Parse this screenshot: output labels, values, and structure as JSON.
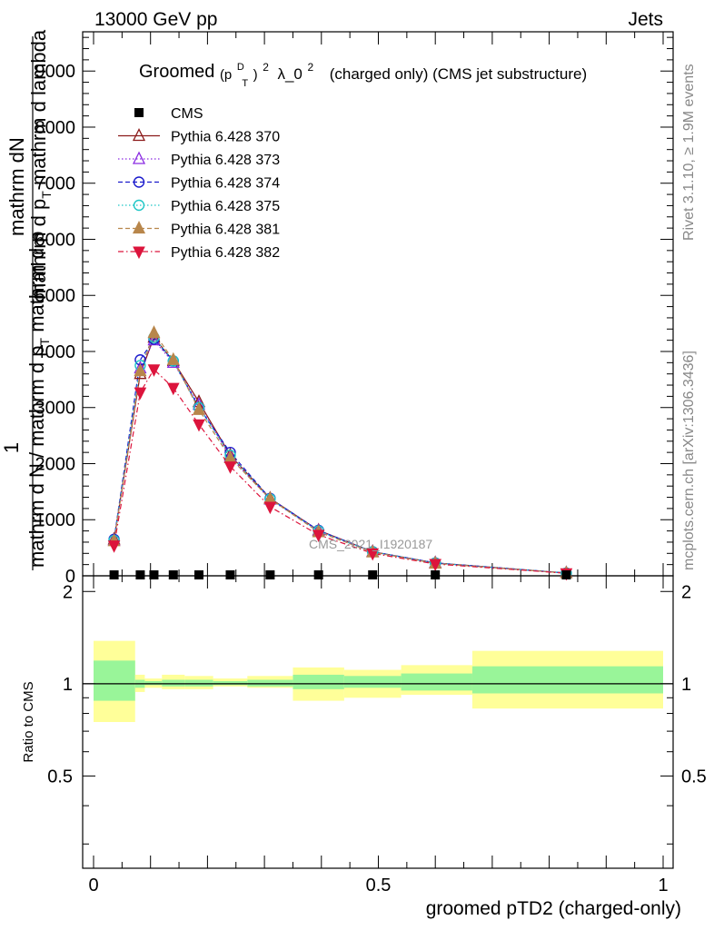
{
  "header": {
    "energy_label": "13000 GeV pp",
    "category_label": "Jets"
  },
  "plot_title": {
    "prefix": "Groomed",
    "p": "(p",
    "sup_d": "D",
    "sub_t": "T",
    "close": ")",
    "sup_2": "2",
    "lambda": "λ_0",
    "sup_2b": "2",
    "suffix": "(charged only) (CMS jet substructure)"
  },
  "side_labels": {
    "rivet": "Rivet 3.1.10, ≥ 1.9M events",
    "mcplots": "mcplots.cern.ch [arXiv:1306.3436]"
  },
  "watermark": "CMS_2021_I1920187",
  "ylabel_main": {
    "line_top": "mathrm d",
    "line_top_n": "N",
    "line_top2": "mathrm d p",
    "line_top2_t": "T",
    "line_top2_b": " mathrm d lambda",
    "frac_num": "1",
    "frac_den": "mathrm d N / mathrm d p",
    "frac_den_t": "T",
    "frac_den_b": " mathrm d p"
  },
  "ylabel_ratio": "Ratio to CMS",
  "xlabel": "groomed pTD2 (charged-only)",
  "legend": {
    "entries": [
      {
        "name": "CMS",
        "marker": "square",
        "color": "#000000",
        "dash": "none"
      },
      {
        "name": "Pythia 6.428 370",
        "marker": "triangle-open",
        "color": "#8b1a1a",
        "dash": "solid"
      },
      {
        "name": "Pythia 6.428 373",
        "marker": "triangle-open",
        "color": "#8a2be2",
        "dash": "dotted"
      },
      {
        "name": "Pythia 6.428 374",
        "marker": "circle-open",
        "color": "#1a1acc",
        "dash": "dashed"
      },
      {
        "name": "Pythia 6.428 375",
        "marker": "circle-open",
        "color": "#1fc6c6",
        "dash": "dotted"
      },
      {
        "name": "Pythia 6.428 381",
        "marker": "triangle-filled",
        "color": "#b8864b",
        "dash": "dashed"
      },
      {
        "name": "Pythia 6.428 382",
        "marker": "triangle-down-filled",
        "color": "#dc143c",
        "dash": "dashdot"
      }
    ]
  },
  "chart_data": {
    "type": "line",
    "x_axis": {
      "range": [
        0,
        1
      ],
      "ticks": [
        "0",
        "0.5",
        "1"
      ],
      "tick_values": [
        0,
        0.5,
        1
      ]
    },
    "main_y_axis": {
      "range": [
        0,
        9700
      ],
      "ticks": [
        "0",
        "1000",
        "2000",
        "3000",
        "4000",
        "5000",
        "6000",
        "7000",
        "8000",
        "9000"
      ],
      "tick_values": [
        0,
        1000,
        2000,
        3000,
        4000,
        5000,
        6000,
        7000,
        8000,
        9000
      ]
    },
    "ratio_y_axis": {
      "range": [
        0.25,
        2.25
      ],
      "ticks": [
        "0.5",
        "1",
        "2"
      ],
      "tick_values": [
        0.5,
        1,
        2
      ],
      "reference_line": 1
    },
    "x": [
      0.036,
      0.082,
      0.106,
      0.14,
      0.185,
      0.24,
      0.31,
      0.395,
      0.49,
      0.6,
      0.83
    ],
    "bin_edges": [
      0,
      0.073,
      0.09,
      0.12,
      0.16,
      0.21,
      0.27,
      0.35,
      0.44,
      0.54,
      0.665,
      1.0
    ],
    "cms": [
      0,
      0,
      0,
      0,
      0,
      0,
      0,
      0,
      0,
      0,
      0
    ],
    "series": [
      {
        "name": "Pythia 6.428 370",
        "values": [
          650,
          3600,
          4250,
          3830,
          3100,
          2150,
          1380,
          810,
          430,
          230,
          50
        ]
      },
      {
        "name": "Pythia 6.428 373",
        "values": [
          630,
          3700,
          4200,
          3800,
          3050,
          2120,
          1360,
          800,
          425,
          225,
          50
        ]
      },
      {
        "name": "Pythia 6.428 374",
        "values": [
          650,
          3850,
          4220,
          3830,
          3000,
          2200,
          1380,
          810,
          430,
          230,
          50
        ]
      },
      {
        "name": "Pythia 6.428 375",
        "values": [
          630,
          3750,
          4250,
          3830,
          3000,
          2150,
          1370,
          800,
          428,
          228,
          50
        ]
      },
      {
        "name": "Pythia 6.428 381",
        "values": [
          620,
          3650,
          4330,
          3850,
          2960,
          2100,
          1370,
          780,
          420,
          220,
          48
        ]
      },
      {
        "name": "Pythia 6.428 382",
        "values": [
          540,
          3270,
          3680,
          3350,
          2700,
          1950,
          1230,
          730,
          400,
          210,
          45
        ]
      }
    ],
    "ratio_bands": {
      "inner_low": [
        0.88,
        0.97,
        0.99,
        0.98,
        0.98,
        0.99,
        0.98,
        0.96,
        0.97,
        0.95,
        0.93
      ],
      "inner_high": [
        1.19,
        1.03,
        1.02,
        1.03,
        1.03,
        1.02,
        1.03,
        1.07,
        1.06,
        1.08,
        1.14
      ],
      "outer_low": [
        0.75,
        0.94,
        0.97,
        0.96,
        0.96,
        0.98,
        0.97,
        0.88,
        0.9,
        0.92,
        0.83
      ],
      "outer_high": [
        1.38,
        1.07,
        1.04,
        1.07,
        1.06,
        1.04,
        1.06,
        1.13,
        1.11,
        1.15,
        1.28
      ]
    }
  }
}
